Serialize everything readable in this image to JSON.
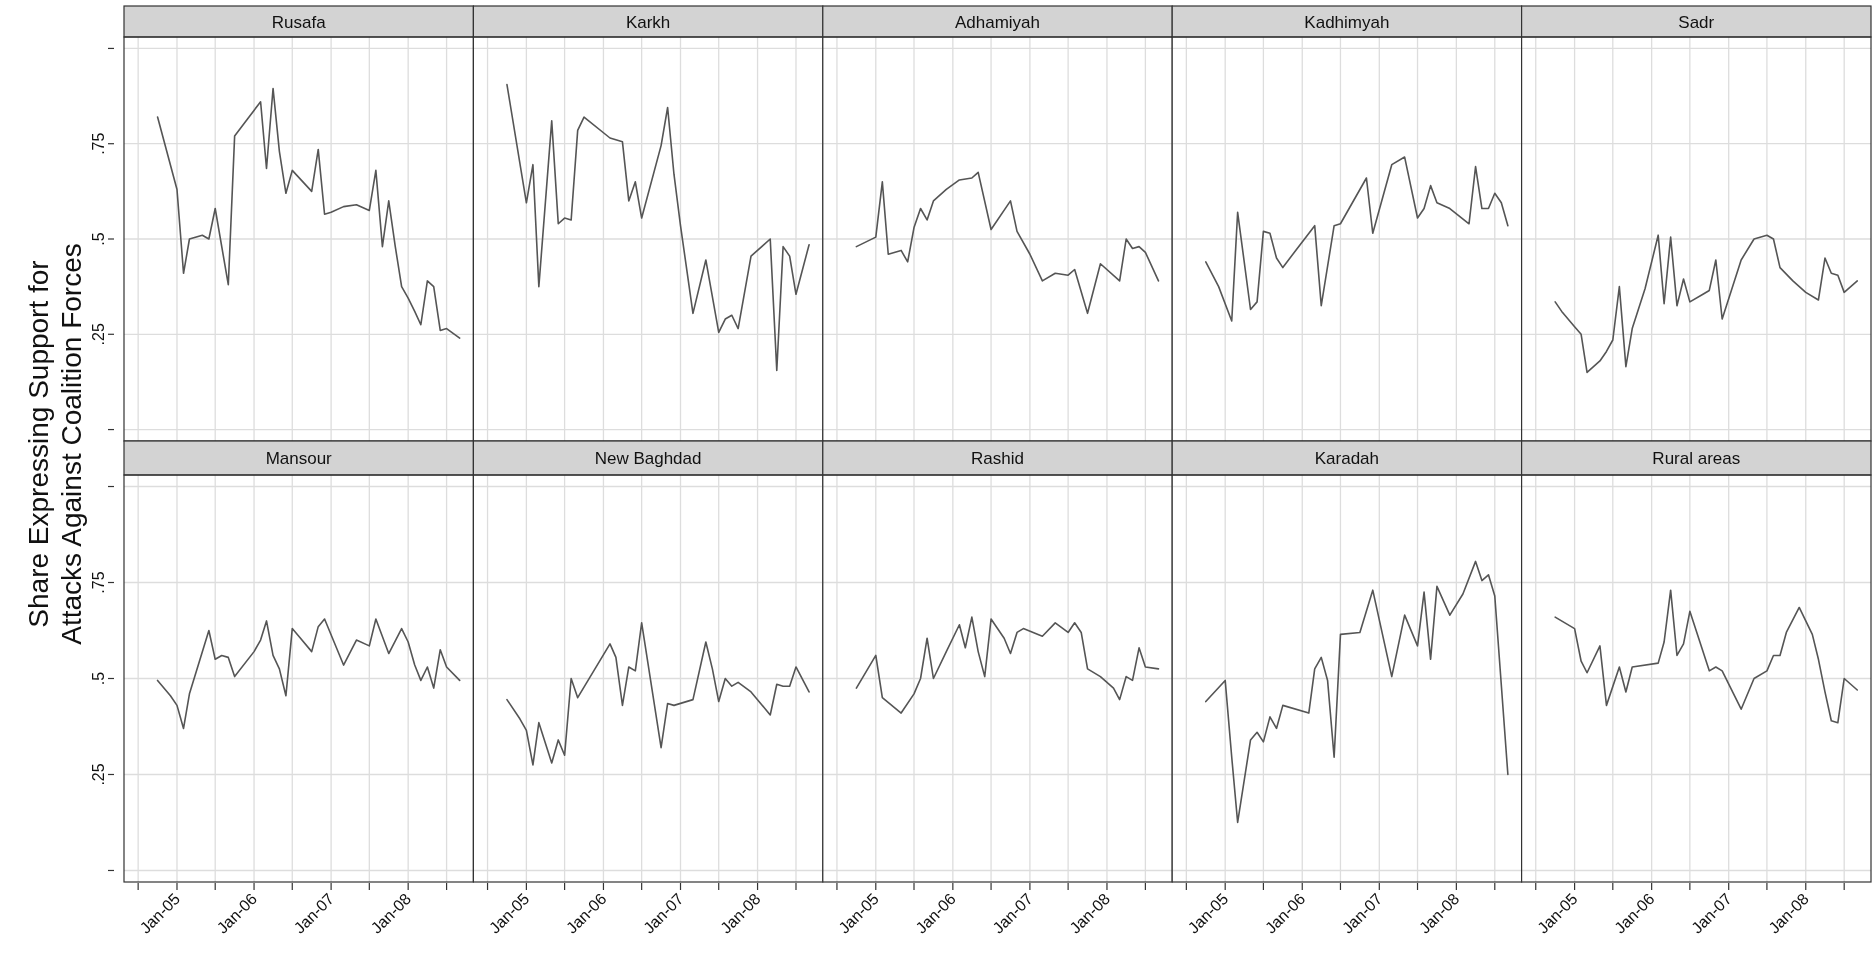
{
  "chart_data": [
    {
      "type": "line",
      "title": "Rusafa",
      "ylabel": "Share Expressing Support for Attacks Against Coalition Forces",
      "color": "#555555",
      "grid": true,
      "tick_labels": "y",
      "xlim": [
        "2004-04-25",
        "2008-11-05"
      ],
      "ylim": [
        -0.03,
        1.03
      ],
      "yticks": [
        {
          "value": 0,
          "label": null
        },
        {
          "value": 0.25,
          "label": ".25"
        },
        {
          "value": 0.5,
          "label": ".5"
        },
        {
          "value": 0.75,
          "label": ".75"
        },
        {
          "value": 1,
          "label": null
        }
      ],
      "xticks": [
        {
          "value": "2004-07-01",
          "label": null
        },
        {
          "value": "2005-01-01",
          "label": null
        },
        {
          "value": "2005-07-01",
          "label": null
        },
        {
          "value": "2006-01-01",
          "label": null
        },
        {
          "value": "2006-07-01",
          "label": null
        },
        {
          "value": "2007-01-01",
          "label": null
        },
        {
          "value": "2007-07-01",
          "label": null
        },
        {
          "value": "2008-01-01",
          "label": null
        },
        {
          "value": "2008-07-01",
          "label": null
        }
      ],
      "x": [
        "2004-10",
        "2005-01",
        "2005-02",
        "2005-03",
        "2005-05",
        "2005-06",
        "2005-07",
        "2005-08",
        "2005-09",
        "2005-10",
        "2005-12",
        "2006-02",
        "2006-03",
        "2006-04",
        "2006-05",
        "2006-06",
        "2006-07",
        "2006-10",
        "2006-11",
        "2006-12",
        "2007-01",
        "2007-03",
        "2007-05",
        "2007-07",
        "2007-08",
        "2007-09",
        "2007-10",
        "2007-11",
        "2007-12",
        "2008-01",
        "2008-02",
        "2008-03",
        "2008-04",
        "2008-05",
        "2008-06",
        "2008-07",
        "2008-09"
      ],
      "values": [
        0.82,
        0.63,
        0.41,
        0.5,
        0.51,
        0.5,
        0.58,
        0.48,
        0.38,
        0.77,
        0.815,
        0.86,
        0.685,
        0.895,
        0.73,
        0.62,
        0.68,
        0.625,
        0.735,
        0.565,
        0.57,
        0.585,
        0.59,
        0.575,
        0.68,
        0.48,
        0.6,
        0.48,
        0.375,
        0.345,
        0.31,
        0.275,
        0.39,
        0.375,
        0.26,
        0.265,
        0.24
      ]
    },
    {
      "type": "line",
      "title": "Karkh",
      "color": "#555555",
      "grid": true,
      "tick_labels": false,
      "xlim": [
        "2004-04-25",
        "2008-11-05"
      ],
      "ylim": [
        -0.03,
        1.03
      ],
      "yticks": [
        {
          "value": 0,
          "label": null
        },
        {
          "value": 0.25,
          "label": null
        },
        {
          "value": 0.5,
          "label": null
        },
        {
          "value": 0.75,
          "label": null
        },
        {
          "value": 1,
          "label": null
        }
      ],
      "xticks": [
        {
          "value": "2004-07-01",
          "label": null
        },
        {
          "value": "2005-01-01",
          "label": null
        },
        {
          "value": "2005-07-01",
          "label": null
        },
        {
          "value": "2006-01-01",
          "label": null
        },
        {
          "value": "2006-07-01",
          "label": null
        },
        {
          "value": "2007-01-01",
          "label": null
        },
        {
          "value": "2007-07-01",
          "label": null
        },
        {
          "value": "2008-01-01",
          "label": null
        },
        {
          "value": "2008-07-01",
          "label": null
        }
      ],
      "x": [
        "2004-10",
        "2005-01",
        "2005-02",
        "2005-03",
        "2005-05",
        "2005-06",
        "2005-07",
        "2005-08",
        "2005-09",
        "2005-10",
        "2006-02",
        "2006-04",
        "2006-05",
        "2006-06",
        "2006-07",
        "2006-10",
        "2006-11",
        "2006-12",
        "2007-01",
        "2007-03",
        "2007-05",
        "2007-07",
        "2007-08",
        "2007-09",
        "2007-10",
        "2007-12",
        "2008-03",
        "2008-04",
        "2008-05",
        "2008-06",
        "2008-07",
        "2008-09"
      ],
      "values": [
        0.905,
        0.595,
        0.695,
        0.375,
        0.81,
        0.54,
        0.555,
        0.55,
        0.785,
        0.82,
        0.765,
        0.755,
        0.6,
        0.65,
        0.555,
        0.745,
        0.845,
        0.67,
        0.535,
        0.305,
        0.445,
        0.255,
        0.29,
        0.3,
        0.265,
        0.455,
        0.5,
        0.155,
        0.48,
        0.455,
        0.355,
        0.485
      ]
    },
    {
      "type": "line",
      "title": "Adhamiyah",
      "color": "#555555",
      "grid": true,
      "tick_labels": false,
      "xlim": [
        "2004-04-25",
        "2008-11-05"
      ],
      "ylim": [
        -0.03,
        1.03
      ],
      "yticks": [
        {
          "value": 0,
          "label": null
        },
        {
          "value": 0.25,
          "label": null
        },
        {
          "value": 0.5,
          "label": null
        },
        {
          "value": 0.75,
          "label": null
        },
        {
          "value": 1,
          "label": null
        }
      ],
      "xticks": [
        {
          "value": "2004-07-01",
          "label": null
        },
        {
          "value": "2005-01-01",
          "label": null
        },
        {
          "value": "2005-07-01",
          "label": null
        },
        {
          "value": "2006-01-01",
          "label": null
        },
        {
          "value": "2006-07-01",
          "label": null
        },
        {
          "value": "2007-01-01",
          "label": null
        },
        {
          "value": "2007-07-01",
          "label": null
        },
        {
          "value": "2008-01-01",
          "label": null
        },
        {
          "value": "2008-07-01",
          "label": null
        }
      ],
      "x": [
        "2004-10",
        "2005-01",
        "2005-02",
        "2005-03",
        "2005-05",
        "2005-06",
        "2005-07",
        "2005-08",
        "2005-09",
        "2005-10",
        "2005-12",
        "2006-02",
        "2006-04",
        "2006-05",
        "2006-07",
        "2006-10",
        "2006-11",
        "2007-01",
        "2007-03",
        "2007-05",
        "2007-07",
        "2007-08",
        "2007-10",
        "2007-12",
        "2008-03",
        "2008-04",
        "2008-05",
        "2008-06",
        "2008-07",
        "2008-09"
      ],
      "values": [
        0.48,
        0.505,
        0.65,
        0.46,
        0.47,
        0.44,
        0.53,
        0.58,
        0.55,
        0.6,
        0.63,
        0.655,
        0.66,
        0.675,
        0.525,
        0.6,
        0.52,
        0.46,
        0.39,
        0.41,
        0.405,
        0.42,
        0.305,
        0.435,
        0.39,
        0.5,
        0.475,
        0.48,
        0.465,
        0.39
      ]
    },
    {
      "type": "line",
      "title": "Kadhimyah",
      "color": "#555555",
      "grid": true,
      "tick_labels": false,
      "xlim": [
        "2004-04-25",
        "2008-11-05"
      ],
      "ylim": [
        -0.03,
        1.03
      ],
      "yticks": [
        {
          "value": 0,
          "label": null
        },
        {
          "value": 0.25,
          "label": null
        },
        {
          "value": 0.5,
          "label": null
        },
        {
          "value": 0.75,
          "label": null
        },
        {
          "value": 1,
          "label": null
        }
      ],
      "xticks": [
        {
          "value": "2004-07-01",
          "label": null
        },
        {
          "value": "2005-01-01",
          "label": null
        },
        {
          "value": "2005-07-01",
          "label": null
        },
        {
          "value": "2006-01-01",
          "label": null
        },
        {
          "value": "2006-07-01",
          "label": null
        },
        {
          "value": "2007-01-01",
          "label": null
        },
        {
          "value": "2007-07-01",
          "label": null
        },
        {
          "value": "2008-01-01",
          "label": null
        },
        {
          "value": "2008-07-01",
          "label": null
        }
      ],
      "x": [
        "2004-10",
        "2004-12",
        "2005-02",
        "2005-03",
        "2005-05",
        "2005-06",
        "2005-07",
        "2005-08",
        "2005-09",
        "2005-10",
        "2005-12",
        "2006-03",
        "2006-04",
        "2006-06",
        "2006-07",
        "2006-11",
        "2006-12",
        "2007-03",
        "2007-05",
        "2007-07",
        "2007-08",
        "2007-09",
        "2007-10",
        "2007-12",
        "2008-03",
        "2008-04",
        "2008-05",
        "2008-06",
        "2008-07",
        "2008-08",
        "2008-09"
      ],
      "values": [
        0.44,
        0.375,
        0.285,
        0.57,
        0.315,
        0.335,
        0.52,
        0.515,
        0.45,
        0.425,
        0.47,
        0.535,
        0.325,
        0.535,
        0.54,
        0.66,
        0.515,
        0.695,
        0.715,
        0.555,
        0.58,
        0.64,
        0.595,
        0.58,
        0.54,
        0.69,
        0.58,
        0.58,
        0.62,
        0.595,
        0.535
      ]
    },
    {
      "type": "line",
      "title": "Sadr",
      "color": "#555555",
      "grid": true,
      "tick_labels": false,
      "xlim": [
        "2004-04-25",
        "2008-11-05"
      ],
      "ylim": [
        -0.03,
        1.03
      ],
      "yticks": [
        {
          "value": 0,
          "label": null
        },
        {
          "value": 0.25,
          "label": null
        },
        {
          "value": 0.5,
          "label": null
        },
        {
          "value": 0.75,
          "label": null
        },
        {
          "value": 1,
          "label": null
        }
      ],
      "xticks": [
        {
          "value": "2004-07-01",
          "label": null
        },
        {
          "value": "2005-01-01",
          "label": null
        },
        {
          "value": "2005-07-01",
          "label": null
        },
        {
          "value": "2006-01-01",
          "label": null
        },
        {
          "value": "2006-07-01",
          "label": null
        },
        {
          "value": "2007-01-01",
          "label": null
        },
        {
          "value": "2007-07-01",
          "label": null
        },
        {
          "value": "2008-01-01",
          "label": null
        },
        {
          "value": "2008-07-01",
          "label": null
        }
      ],
      "x": [
        "2004-10",
        "2004-11",
        "2005-01",
        "2005-02",
        "2005-03",
        "2005-05",
        "2005-06",
        "2005-07",
        "2005-08",
        "2005-09",
        "2005-10",
        "2005-12",
        "2006-02",
        "2006-03",
        "2006-04",
        "2006-05",
        "2006-06",
        "2006-07",
        "2006-09",
        "2006-10",
        "2006-11",
        "2006-12",
        "2007-03",
        "2007-05",
        "2007-07",
        "2007-08",
        "2007-09",
        "2007-11",
        "2008-01",
        "2008-03",
        "2008-04",
        "2008-05",
        "2008-06",
        "2008-07",
        "2008-09"
      ],
      "values": [
        0.335,
        0.31,
        0.27,
        0.25,
        0.15,
        0.18,
        0.205,
        0.235,
        0.375,
        0.165,
        0.265,
        0.37,
        0.51,
        0.33,
        0.505,
        0.325,
        0.395,
        0.335,
        0.355,
        0.365,
        0.445,
        0.29,
        0.445,
        0.5,
        0.51,
        0.5,
        0.425,
        0.39,
        0.36,
        0.34,
        0.45,
        0.41,
        0.405,
        0.36,
        0.39
      ]
    },
    {
      "type": "line",
      "title": "Mansour",
      "color": "#555555",
      "grid": true,
      "xlim": [
        "2004-04-25",
        "2008-11-05"
      ],
      "ylim": [
        -0.03,
        1.03
      ],
      "yticks": [
        {
          "value": 0,
          "label": null
        },
        {
          "value": 0.25,
          "label": ".25"
        },
        {
          "value": 0.5,
          "label": ".5"
        },
        {
          "value": 0.75,
          "label": ".75"
        },
        {
          "value": 1,
          "label": null
        }
      ],
      "xticks": [
        {
          "value": "2004-07-01",
          "label": null
        },
        {
          "value": "2005-01-01",
          "label": "Jan-05"
        },
        {
          "value": "2005-07-01",
          "label": null
        },
        {
          "value": "2006-01-01",
          "label": "Jan-06"
        },
        {
          "value": "2006-07-01",
          "label": null
        },
        {
          "value": "2007-01-01",
          "label": "Jan-07"
        },
        {
          "value": "2007-07-01",
          "label": null
        },
        {
          "value": "2008-01-01",
          "label": "Jan-08"
        },
        {
          "value": "2008-07-01",
          "label": null
        }
      ],
      "x": [
        "2004-10",
        "2004-12",
        "2005-01",
        "2005-02",
        "2005-03",
        "2005-06",
        "2005-07",
        "2005-08",
        "2005-09",
        "2005-10",
        "2006-01",
        "2006-02",
        "2006-03",
        "2006-04",
        "2006-05",
        "2006-06",
        "2006-07",
        "2006-08",
        "2006-10",
        "2006-11",
        "2006-12",
        "2007-03",
        "2007-05",
        "2007-07",
        "2007-08",
        "2007-10",
        "2007-12",
        "2008-01",
        "2008-02",
        "2008-03",
        "2008-04",
        "2008-05",
        "2008-06",
        "2008-07",
        "2008-09"
      ],
      "values": [
        0.495,
        0.455,
        0.43,
        0.37,
        0.46,
        0.625,
        0.55,
        0.56,
        0.555,
        0.505,
        0.57,
        0.6,
        0.65,
        0.56,
        0.525,
        0.455,
        0.63,
        0.61,
        0.57,
        0.635,
        0.655,
        0.535,
        0.6,
        0.585,
        0.655,
        0.565,
        0.63,
        0.595,
        0.535,
        0.495,
        0.53,
        0.475,
        0.575,
        0.53,
        0.495
      ]
    },
    {
      "type": "line",
      "title": "New Baghdad",
      "color": "#555555",
      "grid": true,
      "tick_labels": "x",
      "xlim": [
        "2004-04-25",
        "2008-11-05"
      ],
      "ylim": [
        -0.03,
        1.03
      ],
      "yticks": [
        {
          "value": 0,
          "label": null
        },
        {
          "value": 0.25,
          "label": null
        },
        {
          "value": 0.5,
          "label": null
        },
        {
          "value": 0.75,
          "label": null
        },
        {
          "value": 1,
          "label": null
        }
      ],
      "xticks": [
        {
          "value": "2004-07-01",
          "label": null
        },
        {
          "value": "2005-01-01",
          "label": "Jan-05"
        },
        {
          "value": "2005-07-01",
          "label": null
        },
        {
          "value": "2006-01-01",
          "label": "Jan-06"
        },
        {
          "value": "2006-07-01",
          "label": null
        },
        {
          "value": "2007-01-01",
          "label": "Jan-07"
        },
        {
          "value": "2007-07-01",
          "label": null
        },
        {
          "value": "2008-01-01",
          "label": "Jan-08"
        },
        {
          "value": "2008-07-01",
          "label": null
        }
      ],
      "x": [
        "2004-10",
        "2004-12",
        "2005-01",
        "2005-02",
        "2005-03",
        "2005-05",
        "2005-06",
        "2005-07",
        "2005-08",
        "2005-09",
        "2006-02",
        "2006-03",
        "2006-04",
        "2006-05",
        "2006-06",
        "2006-07",
        "2006-10",
        "2006-11",
        "2006-12",
        "2007-03",
        "2007-05",
        "2007-06",
        "2007-07",
        "2007-08",
        "2007-09",
        "2007-10",
        "2007-12",
        "2008-03",
        "2008-04",
        "2008-05",
        "2008-06",
        "2008-07",
        "2008-09"
      ],
      "values": [
        0.445,
        0.395,
        0.365,
        0.275,
        0.385,
        0.28,
        0.34,
        0.3,
        0.5,
        0.45,
        0.59,
        0.555,
        0.43,
        0.53,
        0.52,
        0.645,
        0.32,
        0.435,
        0.43,
        0.445,
        0.595,
        0.525,
        0.44,
        0.5,
        0.48,
        0.49,
        0.465,
        0.405,
        0.485,
        0.48,
        0.48,
        0.53,
        0.465
      ]
    },
    {
      "type": "line",
      "title": "Rashid",
      "color": "#555555",
      "grid": true,
      "tick_labels": "x",
      "xlim": [
        "2004-04-25",
        "2008-11-05"
      ],
      "ylim": [
        -0.03,
        1.03
      ],
      "yticks": [
        {
          "value": 0,
          "label": null
        },
        {
          "value": 0.25,
          "label": null
        },
        {
          "value": 0.5,
          "label": null
        },
        {
          "value": 0.75,
          "label": null
        },
        {
          "value": 1,
          "label": null
        }
      ],
      "xticks": [
        {
          "value": "2004-07-01",
          "label": null
        },
        {
          "value": "2005-01-01",
          "label": "Jan-05"
        },
        {
          "value": "2005-07-01",
          "label": null
        },
        {
          "value": "2006-01-01",
          "label": "Jan-06"
        },
        {
          "value": "2006-07-01",
          "label": null
        },
        {
          "value": "2007-01-01",
          "label": "Jan-07"
        },
        {
          "value": "2007-07-01",
          "label": null
        },
        {
          "value": "2008-01-01",
          "label": "Jan-08"
        },
        {
          "value": "2008-07-01",
          "label": null
        }
      ],
      "x": [
        "2004-10",
        "2005-01",
        "2005-02",
        "2005-05",
        "2005-07",
        "2005-08",
        "2005-09",
        "2005-10",
        "2005-12",
        "2006-02",
        "2006-03",
        "2006-04",
        "2006-05",
        "2006-06",
        "2006-07",
        "2006-09",
        "2006-10",
        "2006-11",
        "2006-12",
        "2007-03",
        "2007-05",
        "2007-07",
        "2007-08",
        "2007-09",
        "2007-10",
        "2007-12",
        "2008-02",
        "2008-03",
        "2008-04",
        "2008-05",
        "2008-06",
        "2008-07",
        "2008-09"
      ],
      "values": [
        0.475,
        0.56,
        0.45,
        0.41,
        0.46,
        0.5,
        0.605,
        0.5,
        0.57,
        0.64,
        0.58,
        0.66,
        0.57,
        0.505,
        0.655,
        0.605,
        0.565,
        0.62,
        0.63,
        0.61,
        0.645,
        0.62,
        0.645,
        0.62,
        0.525,
        0.505,
        0.475,
        0.445,
        0.505,
        0.495,
        0.58,
        0.53,
        0.525
      ]
    },
    {
      "type": "line",
      "title": "Karadah",
      "color": "#555555",
      "grid": true,
      "tick_labels": "x",
      "xlim": [
        "2004-04-25",
        "2008-11-05"
      ],
      "ylim": [
        -0.03,
        1.03
      ],
      "yticks": [
        {
          "value": 0,
          "label": null
        },
        {
          "value": 0.25,
          "label": null
        },
        {
          "value": 0.5,
          "label": null
        },
        {
          "value": 0.75,
          "label": null
        },
        {
          "value": 1,
          "label": null
        }
      ],
      "xticks": [
        {
          "value": "2004-07-01",
          "label": null
        },
        {
          "value": "2005-01-01",
          "label": "Jan-05"
        },
        {
          "value": "2005-07-01",
          "label": null
        },
        {
          "value": "2006-01-01",
          "label": "Jan-06"
        },
        {
          "value": "2006-07-01",
          "label": null
        },
        {
          "value": "2007-01-01",
          "label": "Jan-07"
        },
        {
          "value": "2007-07-01",
          "label": null
        },
        {
          "value": "2008-01-01",
          "label": "Jan-08"
        },
        {
          "value": "2008-07-01",
          "label": null
        }
      ],
      "x": [
        "2004-10",
        "2005-01",
        "2005-02",
        "2005-03",
        "2005-05",
        "2005-06",
        "2005-07",
        "2005-08",
        "2005-09",
        "2005-10",
        "2006-02",
        "2006-03",
        "2006-04",
        "2006-05",
        "2006-06",
        "2006-07",
        "2006-10",
        "2006-12",
        "2007-03",
        "2007-05",
        "2007-07",
        "2007-08",
        "2007-09",
        "2007-10",
        "2007-12",
        "2008-02",
        "2008-04",
        "2008-05",
        "2008-06",
        "2008-07",
        "2008-09"
      ],
      "values": [
        0.44,
        0.495,
        0.295,
        0.125,
        0.34,
        0.36,
        0.335,
        0.4,
        0.37,
        0.43,
        0.41,
        0.525,
        0.555,
        0.495,
        0.295,
        0.615,
        0.62,
        0.73,
        0.505,
        0.665,
        0.585,
        0.725,
        0.55,
        0.74,
        0.665,
        0.72,
        0.805,
        0.755,
        0.77,
        0.715,
        0.25
      ]
    },
    {
      "type": "line",
      "title": "Rural areas",
      "color": "#555555",
      "grid": true,
      "tick_labels": "x",
      "xlim": [
        "2004-04-25",
        "2008-11-05"
      ],
      "ylim": [
        -0.03,
        1.03
      ],
      "yticks": [
        {
          "value": 0,
          "label": null
        },
        {
          "value": 0.25,
          "label": null
        },
        {
          "value": 0.5,
          "label": null
        },
        {
          "value": 0.75,
          "label": null
        },
        {
          "value": 1,
          "label": null
        }
      ],
      "xticks": [
        {
          "value": "2004-07-01",
          "label": null
        },
        {
          "value": "2005-01-01",
          "label": "Jan-05"
        },
        {
          "value": "2005-07-01",
          "label": null
        },
        {
          "value": "2006-01-01",
          "label": "Jan-06"
        },
        {
          "value": "2006-07-01",
          "label": null
        },
        {
          "value": "2007-01-01",
          "label": "Jan-07"
        },
        {
          "value": "2007-07-01",
          "label": null
        },
        {
          "value": "2008-01-01",
          "label": "Jan-08"
        },
        {
          "value": "2008-07-01",
          "label": null
        }
      ],
      "x": [
        "2004-10",
        "2005-01",
        "2005-02",
        "2005-03",
        "2005-05",
        "2005-06",
        "2005-08",
        "2005-09",
        "2005-10",
        "2006-02",
        "2006-03",
        "2006-04",
        "2006-05",
        "2006-06",
        "2006-07",
        "2006-10",
        "2006-11",
        "2006-12",
        "2007-03",
        "2007-05",
        "2007-07",
        "2007-08",
        "2007-09",
        "2007-10",
        "2007-12",
        "2008-02",
        "2008-03",
        "2008-04",
        "2008-05",
        "2008-06",
        "2008-07",
        "2008-09"
      ],
      "values": [
        0.66,
        0.63,
        0.545,
        0.515,
        0.585,
        0.43,
        0.53,
        0.465,
        0.53,
        0.54,
        0.595,
        0.73,
        0.56,
        0.59,
        0.675,
        0.52,
        0.53,
        0.52,
        0.42,
        0.5,
        0.52,
        0.56,
        0.56,
        0.62,
        0.685,
        0.615,
        0.55,
        0.465,
        0.39,
        0.385,
        0.5,
        0.47
      ]
    }
  ]
}
